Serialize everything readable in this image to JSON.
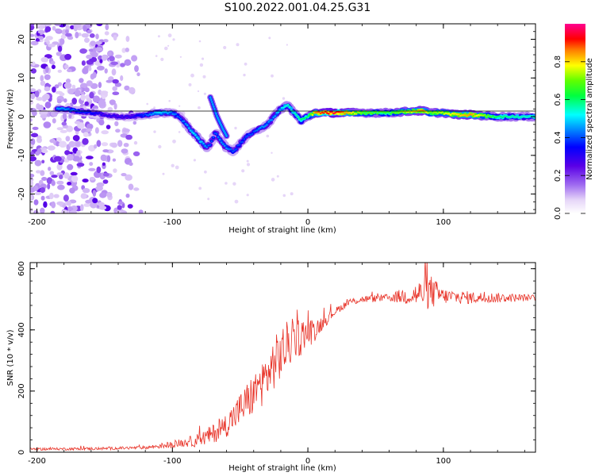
{
  "title": "S100.2022.001.04.25.G31",
  "chart_data": [
    {
      "type": "heatmap",
      "name": "spectrogram",
      "xlabel": "Height of straight line (km)",
      "ylabel": "Frequency (Hz)",
      "xlim": [
        -205,
        168
      ],
      "ylim": [
        -25,
        24
      ],
      "xticks": [
        -200,
        -100,
        0,
        100
      ],
      "yticks": [
        -20,
        -10,
        0,
        10,
        20
      ],
      "colorbar": {
        "label": "Normalized spectral amplitude",
        "range": [
          0,
          1
        ],
        "ticks": [
          "0.0",
          "0.2",
          "0.4",
          "0.6",
          "0.8"
        ],
        "tick_values": [
          0,
          0.2,
          0.4,
          0.6,
          0.8
        ],
        "colormap": "rainbow (white-lavender-purple-blue-cyan-green-yellow-red-magenta)"
      },
      "ridge": {
        "x": [
          -180,
          -170,
          -160,
          -150,
          -140,
          -130,
          -120,
          -110,
          -100,
          -95,
          -90,
          -85,
          -80,
          -75,
          -72,
          -68,
          -65,
          -60,
          -55,
          -50,
          -45,
          -40,
          -35,
          -30,
          -25,
          -20,
          -15,
          -10,
          -5,
          0,
          5,
          10,
          20,
          40,
          60,
          80,
          85,
          90,
          100,
          110,
          120,
          140,
          160,
          168
        ],
        "y": [
          2,
          1.5,
          1,
          0.5,
          0,
          0,
          0.5,
          1,
          1,
          0,
          -2,
          -4,
          -6,
          -8,
          -7,
          -4,
          -6,
          -8,
          -9,
          -7,
          -5,
          -4,
          -3,
          -2,
          0,
          2,
          3,
          1,
          -1,
          0,
          1,
          1,
          1,
          1,
          1,
          1.5,
          1.5,
          1,
          1,
          0.5,
          0.5,
          0,
          0,
          0
        ]
      },
      "ridge_amplitude": [
        0.45,
        0.4,
        0.35,
        0.3,
        0.3,
        0.3,
        0.4,
        0.5,
        0.45,
        0.4,
        0.45,
        0.5,
        0.5,
        0.45,
        0.4,
        0.4,
        0.45,
        0.45,
        0.4,
        0.4,
        0.4,
        0.4,
        0.45,
        0.45,
        0.45,
        0.5,
        0.55,
        0.55,
        0.6,
        0.6,
        0.85,
        0.9,
        0.95,
        0.7,
        0.65,
        0.8,
        0.85,
        0.7,
        0.75,
        0.8,
        0.85,
        0.6,
        0.55,
        0.55
      ],
      "side_branch": {
        "x": [
          -72,
          -70,
          -67,
          -63,
          -60
        ],
        "y": [
          5,
          3,
          0,
          -3,
          -5
        ]
      },
      "noise_region": {
        "x": [
          -205,
          -120
        ],
        "y": [
          -25,
          24
        ]
      }
    },
    {
      "type": "line",
      "name": "snr",
      "xlabel": "Height of straight line (km)",
      "ylabel": "SNR (10 * v/v)",
      "xlim": [
        -205,
        168
      ],
      "ylim": [
        0,
        620
      ],
      "xticks": [
        -200,
        -100,
        0,
        100
      ],
      "yticks": [
        0,
        200,
        400,
        600
      ],
      "color": "#e8352a",
      "trend": {
        "x": [
          -205,
          -150,
          -120,
          -100,
          -80,
          -70,
          -60,
          -50,
          -40,
          -30,
          -25,
          -20,
          -15,
          -10,
          -5,
          0,
          5,
          10,
          20,
          30,
          40,
          60,
          80,
          90,
          100,
          120,
          140,
          168
        ],
        "y": [
          10,
          12,
          15,
          25,
          40,
          60,
          90,
          140,
          190,
          250,
          290,
          320,
          350,
          370,
          380,
          390,
          400,
          420,
          460,
          490,
          500,
          505,
          515,
          525,
          510,
          505,
          505,
          505
        ]
      },
      "noise_amplitude": {
        "x": [
          -205,
          -120,
          -90,
          -60,
          -40,
          -20,
          0,
          10,
          20,
          60,
          80,
          90,
          100,
          168
        ],
        "y": [
          4,
          5,
          15,
          40,
          70,
          90,
          50,
          25,
          12,
          12,
          40,
          60,
          25,
          10
        ]
      }
    }
  ]
}
